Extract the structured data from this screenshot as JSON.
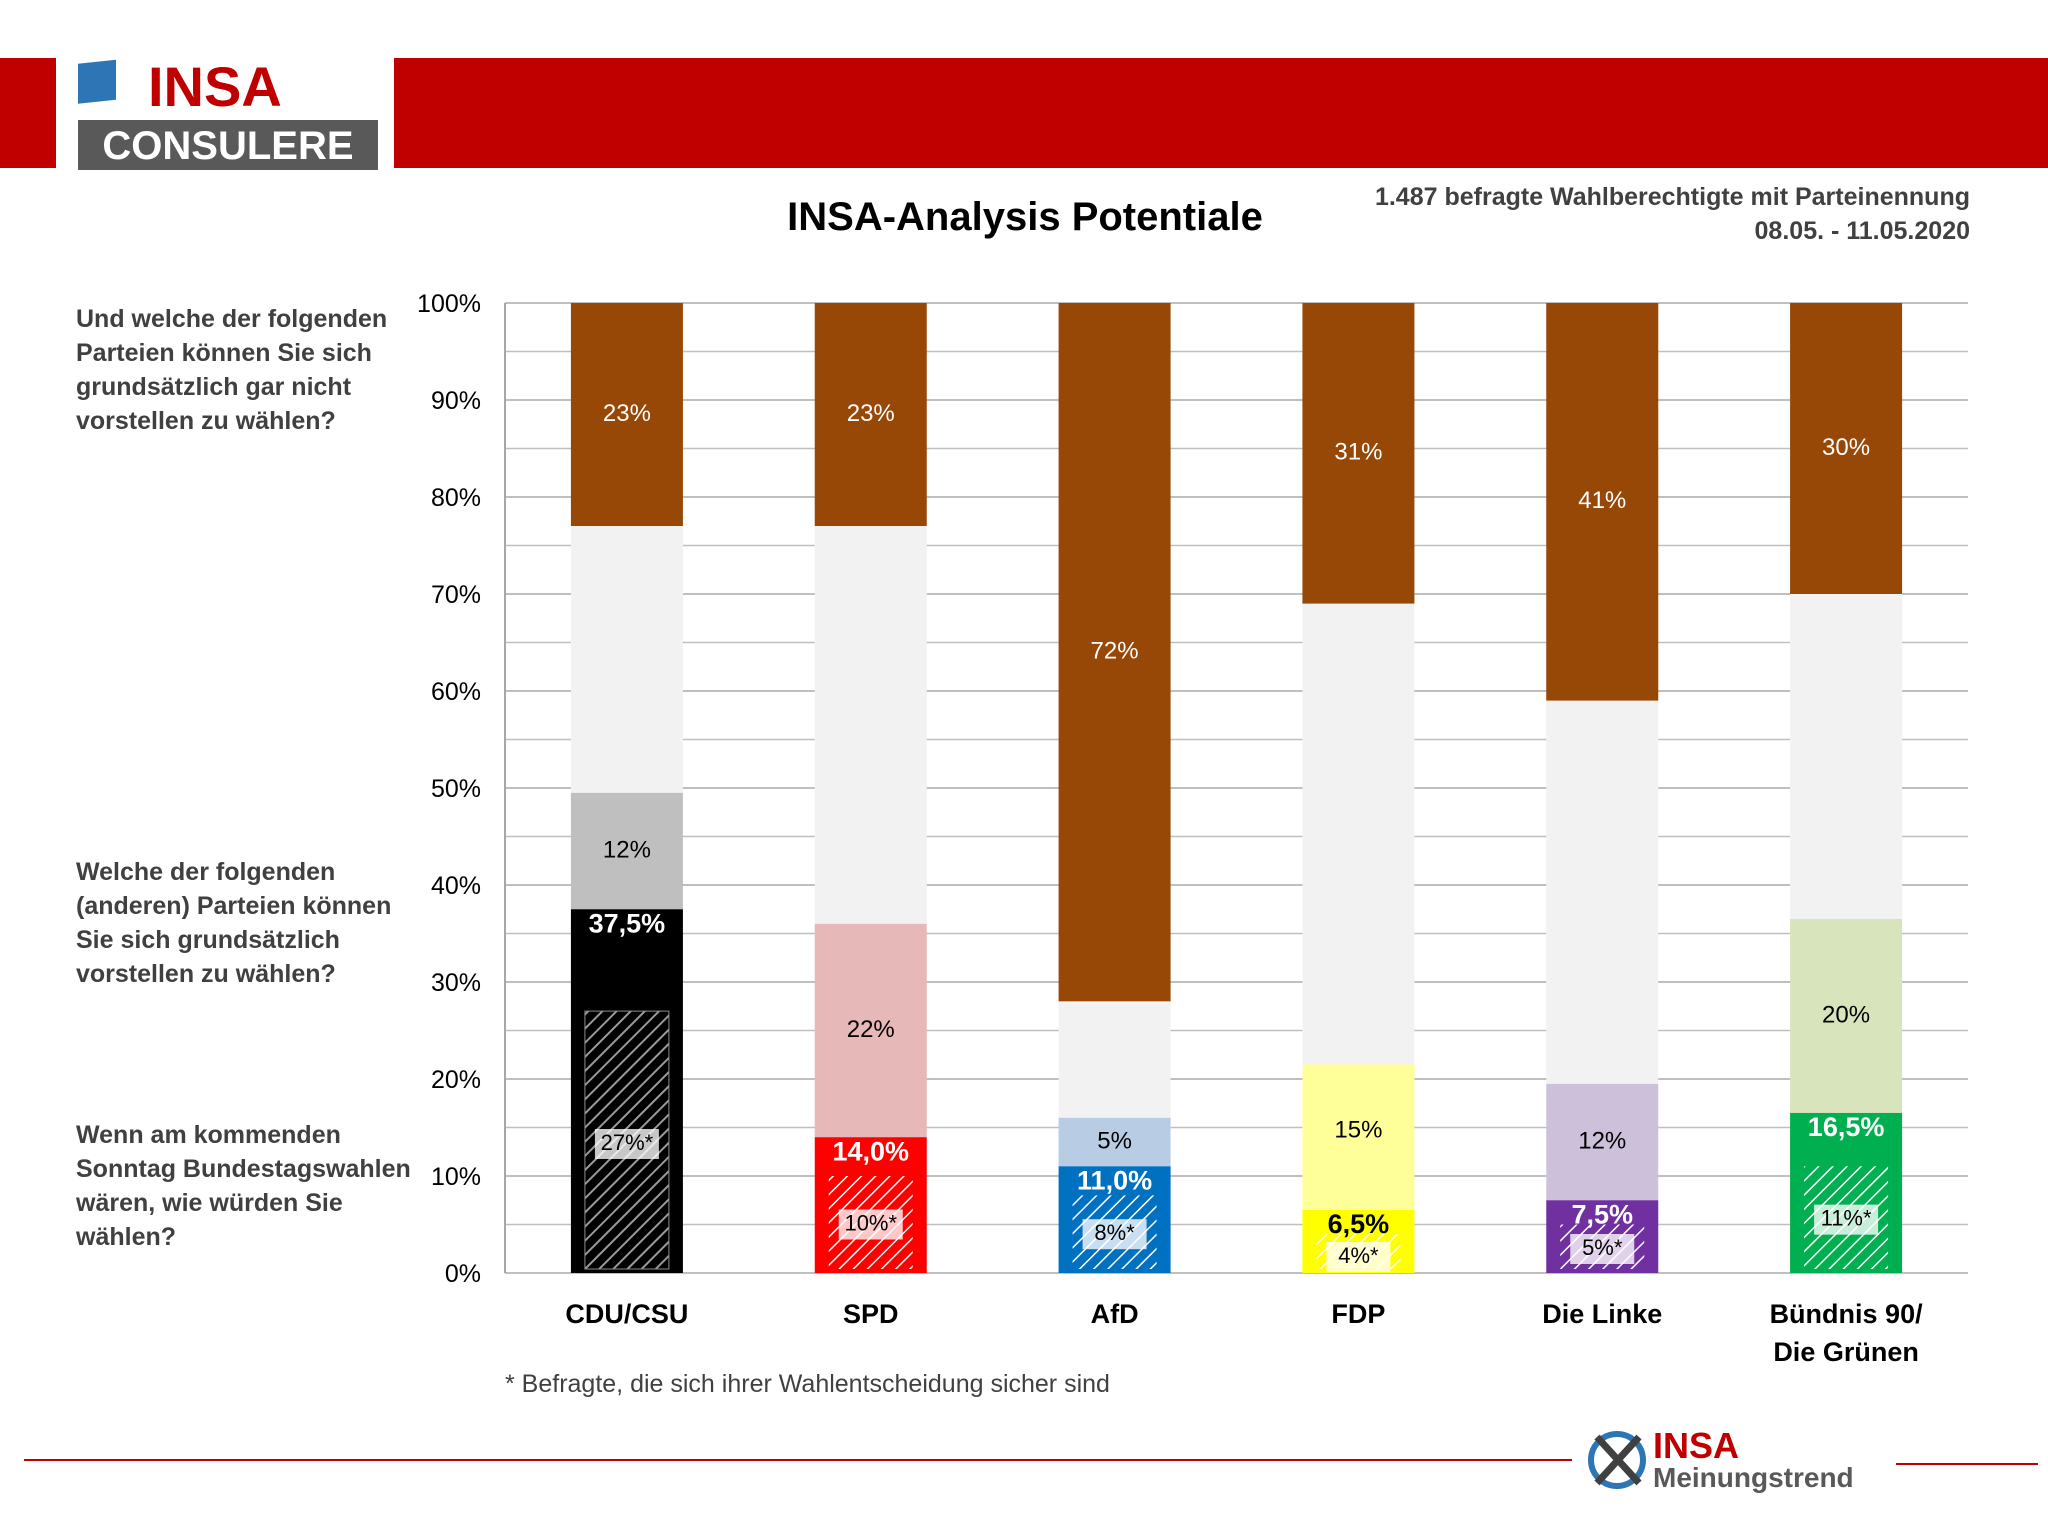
{
  "brand": {
    "logo_top": "INSA",
    "logo_bottom": "CONSULERE",
    "footer_logo_top": "INSA",
    "footer_logo_bottom": "Meinungstrend",
    "red": "#c00000",
    "gray": "#595959",
    "blue": "#2e75b6"
  },
  "header": {
    "title": "INSA-Analysis Potentiale",
    "subtitle_line1": "1.487 befragte Wahlberechtigte mit Parteinennung",
    "subtitle_line2": "08.05. - 11.05.2020"
  },
  "questions": {
    "q_not_vote": "Und welche der folgenden Parteien können Sie sich grundsätzlich gar nicht vorstellen zu wählen?",
    "q_potential": "Welche der folgenden (anderen) Parteien können Sie sich grundsätzlich vorstellen zu wählen?",
    "q_sunday": "Wenn am kommenden Sonntag Bundestagswahlen wären, wie würden Sie wählen?"
  },
  "footnote": "* Befragte, die sich ihrer Wahlentscheidung sicher sind",
  "chart_data": {
    "type": "bar",
    "stacked": true,
    "ylim": [
      0,
      100
    ],
    "yticks": [
      "0%",
      "10%",
      "20%",
      "30%",
      "40%",
      "50%",
      "60%",
      "70%",
      "80%",
      "90%",
      "100%"
    ],
    "grid": true,
    "categories": [
      "CDU/CSU",
      "SPD",
      "AfD",
      "FDP",
      "Die Linke",
      "Bündnis 90/\nDie Grünen"
    ],
    "vote_intention": [
      37.5,
      14.0,
      11.0,
      6.5,
      7.5,
      16.5
    ],
    "vote_intention_labels": [
      "37,5%",
      "14,0%",
      "11,0%",
      "6,5%",
      "7,5%",
      "16,5%"
    ],
    "certain_voters": [
      27,
      10,
      8,
      4,
      5,
      11
    ],
    "certain_voters_labels": [
      "27%*",
      "10%*",
      "8%*",
      "4%*",
      "5%*",
      "11%*"
    ],
    "potential": [
      12,
      22,
      5,
      15,
      12,
      20
    ],
    "potential_labels": [
      "12%",
      "22%",
      "5%",
      "15%",
      "12%",
      "20%"
    ],
    "not_vote": [
      23,
      23,
      72,
      31,
      41,
      30
    ],
    "not_vote_labels": [
      "23%",
      "23%",
      "72%",
      "31%",
      "41%",
      "30%"
    ],
    "colors": {
      "main": [
        "#000000",
        "#ff0000",
        "#0070c0",
        "#ffff00",
        "#7030a0",
        "#00b050"
      ],
      "potential": [
        "#bfbfbf",
        "#e6b8b7",
        "#b8cce4",
        "#ffff99",
        "#ccc0da",
        "#d8e4bc"
      ],
      "undecided": "#f2f2f2",
      "not_vote": "#974706"
    }
  }
}
